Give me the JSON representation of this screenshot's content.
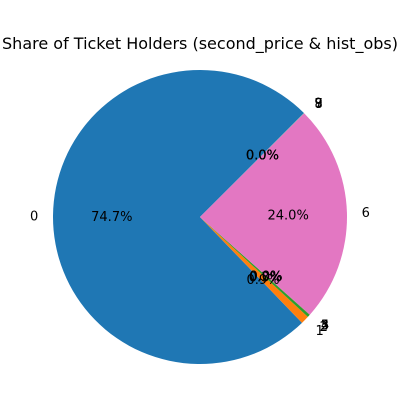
{
  "chart_data": {
    "type": "pie",
    "title": "Share of Ticket Holders (second_price & hist_obs)",
    "slices": [
      {
        "label": "0",
        "percent_label": "74.7%",
        "value": 74.7,
        "color": "#1f77b4"
      },
      {
        "label": "1",
        "percent_label": "0.9%",
        "value": 0.9,
        "color": "#ff7f0e"
      },
      {
        "label": "2",
        "percent_label": "0.3%",
        "value": 0.3,
        "color": "#2ca02c"
      },
      {
        "label": "3",
        "percent_label": "0.0%",
        "value": 0.02,
        "color": "#d62728"
      },
      {
        "label": "4",
        "percent_label": "0.0%",
        "value": 0.02,
        "color": "#9467bd"
      },
      {
        "label": "5",
        "percent_label": "0.0%",
        "value": 0.02,
        "color": "#8c564b"
      },
      {
        "label": "6",
        "percent_label": "24.0%",
        "value": 24.0,
        "color": "#e377c2"
      },
      {
        "label": "7",
        "percent_label": "0.0%",
        "value": 0.01,
        "color": "#7f7f7f"
      },
      {
        "label": "8",
        "percent_label": "0.0%",
        "value": 0.01,
        "color": "#bcbd22"
      },
      {
        "label": "9",
        "percent_label": "0.0%",
        "value": 0.01,
        "color": "#17becf"
      }
    ],
    "start_angle_deg": 45,
    "direction": "counterclockwise"
  }
}
